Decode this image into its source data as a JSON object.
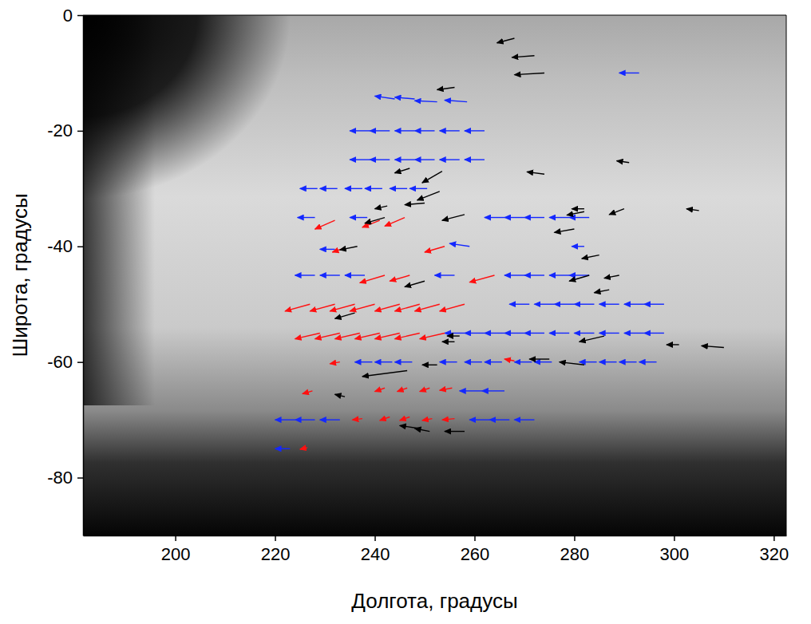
{
  "chart_data": {
    "type": "quiver",
    "xlabel": "Долгота, градусы",
    "ylabel": "Широта, градусы",
    "xlim": [
      181.5,
      322.5
    ],
    "xticks": [
      200,
      220,
      240,
      260,
      280,
      300,
      320
    ],
    "ylim": [
      -90,
      0
    ],
    "yticks": [
      -80,
      -60,
      -40,
      -20,
      0
    ],
    "tick_labels": true,
    "grid": false,
    "series": [
      {
        "color": "#1428ff",
        "marker": "arrow",
        "x": [
          293,
          244,
          248,
          252.5,
          258.5,
          239,
          243,
          248,
          252,
          257,
          262,
          239,
          243,
          248,
          252,
          257,
          262,
          228.5,
          232.5,
          237.5,
          241.5,
          246.5,
          250.5,
          228,
          238.5,
          266,
          270,
          274,
          279,
          283,
          232,
          259,
          282,
          228,
          233,
          238,
          256,
          270,
          274,
          279,
          283,
          271,
          276,
          280,
          284,
          289,
          294,
          298,
          258,
          262,
          266,
          270,
          274,
          279,
          284,
          289,
          294,
          298,
          239.5,
          243.5,
          247.5,
          256.5,
          261.5,
          265.5,
          271.5,
          275.5,
          284.5,
          288.5,
          292.5,
          296.5,
          261.5,
          266,
          224,
          228,
          233,
          263,
          267,
          272,
          223
        ],
        "y": [
          -10,
          -14.5,
          -14.5,
          -15,
          -15,
          -20,
          -20,
          -20,
          -20,
          -20,
          -20,
          -25,
          -25,
          -25,
          -25,
          -25,
          -25,
          -30,
          -30,
          -30,
          -30,
          -30,
          -30,
          -35,
          -35,
          -35,
          -35,
          -35,
          -35,
          -35,
          -40.5,
          -40,
          -40,
          -45,
          -45,
          -45,
          -45,
          -45,
          -45,
          -45,
          -45,
          -50,
          -50,
          -50,
          -50,
          -50,
          -50,
          -50,
          -55,
          -55,
          -55,
          -55,
          -55,
          -55,
          -55,
          -55,
          -55,
          -55,
          -60,
          -60,
          -60,
          -60,
          -60,
          -60,
          -60,
          -60,
          -60,
          -60,
          -60,
          -60,
          -65,
          -65,
          -70,
          -70,
          -70,
          -70,
          -70,
          -70,
          -75
        ],
        "u": [
          -4,
          -4,
          -4,
          -4.5,
          -4.5,
          -4,
          -4,
          -4,
          -4,
          -4,
          -4,
          -4,
          -4,
          -4,
          -4,
          -4,
          -4,
          -3.5,
          -3.5,
          -3.5,
          -3.5,
          -3.5,
          -3.5,
          -3.5,
          -3.5,
          -4,
          -4,
          -4,
          -4,
          -4,
          -3,
          -4,
          -2.5,
          -4,
          -4,
          -4,
          -4,
          -4,
          -4,
          -4,
          -4,
          -4,
          -4,
          -4,
          -4,
          -4,
          -4,
          -4,
          -4,
          -4,
          -4,
          -4,
          -4,
          -4,
          -4,
          -4,
          -4,
          -4,
          -3.5,
          -3.5,
          -3.5,
          -3.5,
          -3.5,
          -3.5,
          -3.5,
          -3.5,
          -3.5,
          -3.5,
          -3.5,
          -3.5,
          -4.5,
          -4.5,
          -4,
          -4,
          -4,
          -4,
          -4,
          -4,
          -3
        ],
        "v": [
          0,
          0.5,
          0.3,
          0.2,
          0.3,
          0,
          0,
          0,
          0,
          0,
          0,
          0,
          0,
          0,
          0,
          0,
          0,
          0,
          0,
          0,
          0,
          0,
          0,
          0,
          0,
          0,
          0,
          0,
          0,
          0,
          0,
          0.5,
          0,
          0,
          0,
          0,
          0,
          0,
          0,
          0,
          0,
          0,
          0,
          0,
          0,
          0,
          0,
          0,
          0,
          0,
          0,
          0,
          0,
          0,
          0,
          0,
          0,
          0,
          0,
          0,
          0,
          0,
          0,
          0,
          0,
          0,
          0,
          0,
          0,
          0,
          0,
          0,
          0,
          0,
          0,
          0,
          0,
          0,
          0
        ]
      },
      {
        "color": "#ff1010",
        "marker": "arrow",
        "x": [
          232,
          241,
          246,
          234,
          254,
          242,
          247,
          264,
          227,
          232,
          236,
          240,
          245,
          249,
          253,
          258,
          229,
          233,
          237,
          241,
          245,
          249,
          254,
          233,
          268,
          227.5,
          242,
          246.5,
          251,
          255.5,
          237.5,
          243,
          247,
          251.5,
          256,
          226.5
        ],
        "y": [
          -35.5,
          -35.5,
          -35,
          -40.3,
          -40,
          -45,
          -45,
          -45,
          -50,
          -50,
          -50,
          -50,
          -50,
          -50,
          -50,
          -50,
          -55,
          -55,
          -55,
          -55,
          -55,
          -55,
          -55,
          -60,
          -59.8,
          -65,
          -64.5,
          -64.5,
          -64.5,
          -64.5,
          -69.8,
          -69.5,
          -69.5,
          -69.8,
          -69.8,
          -74.8
        ],
        "u": [
          -4,
          -3.5,
          -4,
          -2.5,
          -4,
          -5,
          -4,
          -5,
          -5,
          -5,
          -5,
          -5,
          -5,
          -5,
          -5,
          -5,
          -5,
          -5,
          -5,
          -5,
          -5,
          -5,
          -5,
          -2,
          -2,
          -2,
          -2,
          -2,
          -2,
          -2.5,
          -2,
          -2,
          -2,
          -2,
          -2.5,
          -1.5
        ],
        "v": [
          -1.5,
          -1.2,
          -1.5,
          -0.7,
          -1,
          -1.3,
          -1,
          -1.2,
          -1.2,
          -1.2,
          -1.2,
          -1.2,
          -1.2,
          -1.2,
          -1.2,
          -1.2,
          -1,
          -1,
          -1,
          -1,
          -1,
          -1,
          -1,
          -0.3,
          0.3,
          -0.5,
          -0.6,
          -0.6,
          -0.6,
          -0.4,
          -0.2,
          -0.6,
          -0.6,
          -0.3,
          -0.2,
          -0.3
        ]
      },
      {
        "color": "#000000",
        "marker": "arrow",
        "x": [
          268,
          272,
          274,
          256,
          247,
          253.5,
          274,
          291,
          253,
          250,
          242.5,
          258,
          242,
          282,
          282,
          290,
          305,
          236.5,
          280,
          285,
          250,
          283,
          289,
          287,
          236,
          257,
          256,
          286,
          301,
          310,
          246.5,
          252.5,
          275,
          282,
          234,
          249,
          251,
          258
        ],
        "y": [
          -4,
          -7,
          -10,
          -12.5,
          -26.5,
          -27,
          -27.5,
          -25.5,
          -30.5,
          -32.5,
          -33,
          -34.5,
          -35,
          -34,
          -33.5,
          -33.5,
          -33.8,
          -40,
          -37,
          -41.5,
          -46,
          -45,
          -45,
          -47.5,
          -51.5,
          -55.5,
          -56.5,
          -55.5,
          -57,
          -57.5,
          -61.5,
          -60.5,
          -59.5,
          -60.5,
          -66,
          -71.5,
          -72,
          -72
        ],
        "u": [
          -3.5,
          -4.5,
          -6,
          -3.5,
          -3,
          -4,
          -3.5,
          -2.5,
          -4.5,
          -4,
          -2.5,
          -4.5,
          -4,
          -3.5,
          -2.5,
          -3,
          -2.5,
          -3.5,
          -4,
          -3.5,
          -4,
          -4,
          -3,
          -3,
          -4,
          -2.5,
          -2.5,
          -5,
          -2.5,
          -4.5,
          -9,
          -3,
          -4,
          -5,
          -2,
          -4,
          -3,
          -4
        ],
        "v": [
          -0.8,
          -0.3,
          -0.3,
          -0.4,
          -0.8,
          -2,
          0.4,
          0.3,
          -1.5,
          -0.3,
          -0.5,
          -1,
          -1,
          -0.6,
          0,
          -1,
          0.3,
          -0.6,
          -0.6,
          -0.6,
          -1,
          -1,
          -0.5,
          -0.5,
          -1,
          0,
          0,
          -1,
          0,
          0.3,
          -1,
          0,
          0,
          0.5,
          0.4,
          0.5,
          0.5,
          0
        ]
      }
    ]
  }
}
